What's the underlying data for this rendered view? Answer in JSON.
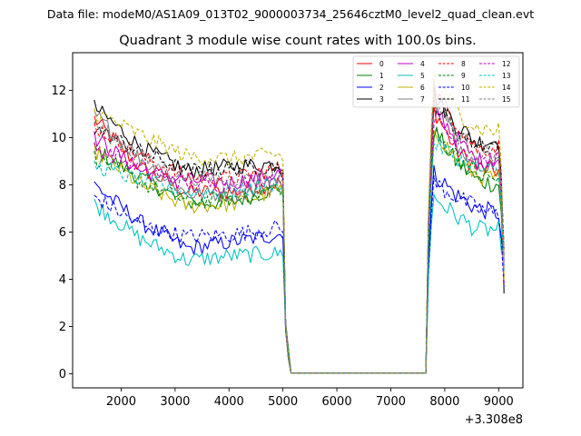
{
  "suptitle": "Data file: modeM0/AS1A09_013T02_9000003734_25646cztM0_level2_quad_clean.evt",
  "chart_data": {
    "type": "line",
    "title": "Quadrant 3 module wise count rates with 100.0s bins.",
    "xlabel": "",
    "ylabel": "",
    "x_offset_label": "+3.308e8",
    "xlim": [
      1100,
      9450
    ],
    "ylim": [
      -0.6,
      13.6
    ],
    "xticks": [
      2000,
      3000,
      4000,
      5000,
      6000,
      7000,
      8000,
      9000
    ],
    "yticks": [
      0,
      2,
      4,
      6,
      8,
      10,
      12
    ],
    "legend_position": "top-right",
    "gap": {
      "start": 5150,
      "end": 7650,
      "value": 0
    },
    "segment1_start": 1500,
    "segment2_end": 9100,
    "series": [
      {
        "name": "0",
        "color": "#ff0000",
        "style": "solid",
        "p1": [
          10.8,
          8.7,
          7.7,
          7.7,
          8.1
        ],
        "p2": [
          11.2,
          9.5,
          8.7,
          8.6
        ]
      },
      {
        "name": "1",
        "color": "#008000",
        "style": "solid",
        "p1": [
          9.5,
          8.3,
          7.2,
          7.3,
          7.9
        ],
        "p2": [
          10.3,
          9.0,
          8.2,
          8.0
        ]
      },
      {
        "name": "2",
        "color": "#0000ff",
        "style": "solid",
        "p1": [
          8.0,
          6.4,
          5.3,
          5.6,
          5.9
        ],
        "p2": [
          8.5,
          7.6,
          7.0,
          6.8
        ]
      },
      {
        "name": "3",
        "color": "#000000",
        "style": "solid",
        "p1": [
          11.3,
          9.6,
          8.6,
          8.8,
          8.9
        ],
        "p2": [
          11.8,
          10.6,
          9.8,
          9.9
        ]
      },
      {
        "name": "4",
        "color": "#c000c0",
        "style": "solid",
        "p1": [
          10.0,
          8.6,
          8.2,
          8.1,
          8.5
        ],
        "p2": [
          11.4,
          10.0,
          9.0,
          9.1
        ]
      },
      {
        "name": "5",
        "color": "#00c0c0",
        "style": "solid",
        "p1": [
          7.2,
          5.7,
          4.8,
          5.0,
          5.1
        ],
        "p2": [
          7.5,
          6.7,
          6.1,
          6.1
        ]
      },
      {
        "name": "6",
        "color": "#c0b000",
        "style": "solid",
        "p1": [
          9.5,
          8.0,
          7.1,
          7.2,
          7.8
        ],
        "p2": [
          10.4,
          9.1,
          8.4,
          8.3
        ]
      },
      {
        "name": "7",
        "color": "#808080",
        "style": "solid",
        "p1": [
          11.0,
          9.1,
          7.6,
          7.6,
          8.0
        ],
        "p2": [
          12.2,
          9.8,
          9.0,
          8.9
        ]
      },
      {
        "name": "8",
        "color": "#ff0000",
        "style": "dashed",
        "p1": [
          10.5,
          9.2,
          8.3,
          8.3,
          8.7
        ],
        "p2": [
          12.0,
          10.7,
          9.5,
          9.6
        ]
      },
      {
        "name": "9",
        "color": "#008000",
        "style": "dashed",
        "p1": [
          9.2,
          8.1,
          7.3,
          7.4,
          7.9
        ],
        "p2": [
          10.1,
          9.3,
          8.4,
          8.2
        ]
      },
      {
        "name": "10",
        "color": "#0000ff",
        "style": "dashed",
        "p1": [
          7.5,
          6.3,
          5.8,
          5.9,
          6.2
        ],
        "p2": [
          8.1,
          7.5,
          7.0,
          6.7
        ]
      },
      {
        "name": "11",
        "color": "#000000",
        "style": "dashed",
        "p1": [
          10.4,
          9.4,
          8.6,
          8.7,
          8.8
        ],
        "p2": [
          11.5,
          10.3,
          9.7,
          9.7
        ]
      },
      {
        "name": "12",
        "color": "#c000c0",
        "style": "dashed",
        "p1": [
          9.6,
          8.7,
          8.0,
          8.0,
          8.4
        ],
        "p2": [
          10.9,
          9.8,
          9.1,
          9.0
        ]
      },
      {
        "name": "13",
        "color": "#00c0c0",
        "style": "dashed",
        "p1": [
          8.8,
          8.2,
          7.7,
          7.7,
          8.1
        ],
        "p2": [
          9.8,
          9.2,
          8.7,
          8.5
        ]
      },
      {
        "name": "14",
        "color": "#c0b000",
        "style": "dashed",
        "p1": [
          11.1,
          10.1,
          9.2,
          9.1,
          9.3
        ],
        "p2": [
          12.6,
          11.2,
          10.4,
          10.3
        ]
      },
      {
        "name": "15",
        "color": "#808080",
        "style": "dashed",
        "p1": [
          10.6,
          9.1,
          8.3,
          8.2,
          8.3
        ],
        "p2": [
          11.6,
          10.2,
          9.4,
          9.3
        ]
      }
    ]
  }
}
